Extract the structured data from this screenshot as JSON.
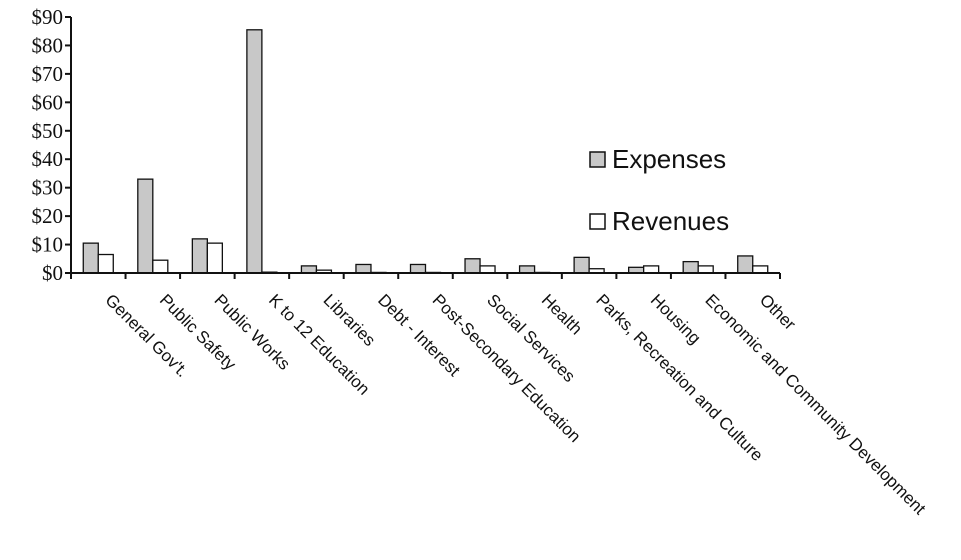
{
  "chart_data": {
    "type": "bar",
    "categories": [
      "General Gov't.",
      "Public Safety",
      "Public Works",
      "K to 12 Education",
      "Libraries",
      "Debt - Interest",
      "Post-Secondary Education",
      "Social Services",
      "Health",
      "Parks, Recreation and Culture",
      "Housing",
      "Economic and Community Development",
      "Other"
    ],
    "series": [
      {
        "name": "Expenses",
        "color": "#c8c8c8",
        "values": [
          10.5,
          33,
          12,
          85.5,
          2.5,
          3,
          3,
          5,
          2.5,
          5.5,
          2,
          4,
          6
        ]
      },
      {
        "name": "Revenues",
        "color": "#ffffff",
        "values": [
          6.5,
          4.5,
          10.5,
          0.3,
          1,
          0.2,
          0.2,
          2.5,
          0.2,
          1.5,
          2.5,
          2.5,
          2.5
        ]
      }
    ],
    "ylim": [
      0,
      90
    ],
    "y_ticks": [
      "$0",
      "$10",
      "$20",
      "$30",
      "$40",
      "$50",
      "$60",
      "$70",
      "$80",
      "$90"
    ],
    "y_tick_values": [
      0,
      10,
      20,
      30,
      40,
      50,
      60,
      70,
      80,
      90
    ],
    "legend_position": "right",
    "grid": false
  }
}
